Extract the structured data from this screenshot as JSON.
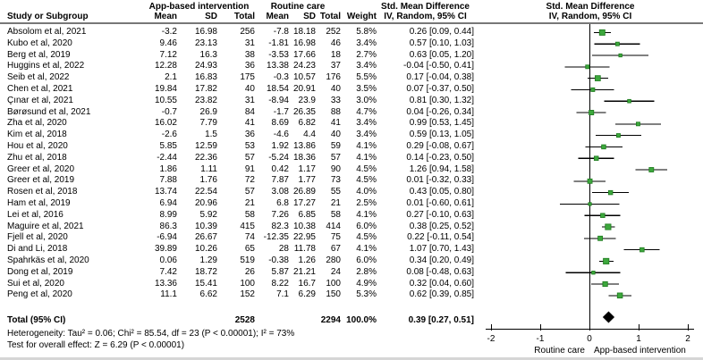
{
  "header": {
    "study_col": "Study or Subgroup",
    "group1": "App-based intervention",
    "group2": "Routine care",
    "mean": "Mean",
    "sd": "SD",
    "total": "Total",
    "weight": "Weight",
    "smd_line1": "Std. Mean Difference",
    "smd_line2": "IV, Random, 95% CI"
  },
  "footnotes": {
    "heterogeneity": "Heterogeneity: Tau² = 0.06; Chi² = 85.54, df = 23 (P < 0.00001); I² = 73%",
    "overall_effect": "Test for overall effect: Z = 6.29 (P < 0.00001)"
  },
  "colors": {
    "marker_fill": "#3DA83D",
    "marker_stroke": "#1E7A1E",
    "diamond": "#000000",
    "axis": "#000000",
    "header_rule": "#777777"
  },
  "chart_data": {
    "type": "scatter",
    "variant": "forest-plot",
    "title": "Std. Mean Difference",
    "effect_model": "IV, Random, 95% CI",
    "xlim": [
      -2,
      2
    ],
    "x_ticks": [
      -2,
      -1,
      0,
      1,
      2
    ],
    "x_label_left": "Routine care",
    "x_label_right": "App-based intervention",
    "studies": [
      {
        "name": "Absolom et al, 2021",
        "m1": -3.2,
        "sd1": 16.98,
        "n1": 256,
        "m2": -7.8,
        "sd2": 18.18,
        "n2": 252,
        "weight": 5.8,
        "est": 0.26,
        "lo": 0.09,
        "hi": 0.44
      },
      {
        "name": "Kubo et al, 2020",
        "m1": 9.46,
        "sd1": 23.13,
        "n1": 31,
        "m2": -1.81,
        "sd2": 16.98,
        "n2": 46,
        "weight": 3.4,
        "est": 0.57,
        "lo": 0.1,
        "hi": 1.03
      },
      {
        "name": "Berg et al, 2019",
        "m1": 7.12,
        "sd1": 16.3,
        "n1": 38,
        "m2": -3.53,
        "sd2": 17.66,
        "n2": 18,
        "weight": 2.7,
        "est": 0.63,
        "lo": 0.05,
        "hi": 1.2
      },
      {
        "name": "Huggins et al, 2022",
        "m1": 12.28,
        "sd1": 24.93,
        "n1": 36,
        "m2": 13.38,
        "sd2": 24.23,
        "n2": 37,
        "weight": 3.4,
        "est": -0.04,
        "lo": -0.5,
        "hi": 0.41
      },
      {
        "name": "Seib et al, 2022",
        "m1": 2.1,
        "sd1": 16.83,
        "n1": 175,
        "m2": -0.3,
        "sd2": 10.57,
        "n2": 176,
        "weight": 5.5,
        "est": 0.17,
        "lo": -0.04,
        "hi": 0.38
      },
      {
        "name": "Chen et al, 2021",
        "m1": 19.84,
        "sd1": 17.82,
        "n1": 40,
        "m2": 18.54,
        "sd2": 20.91,
        "n2": 40,
        "weight": 3.5,
        "est": 0.07,
        "lo": -0.37,
        "hi": 0.5
      },
      {
        "name": "Çınar et al, 2021",
        "m1": 10.55,
        "sd1": 23.82,
        "n1": 31,
        "m2": -8.94,
        "sd2": 23.9,
        "n2": 33,
        "weight": 3.0,
        "est": 0.81,
        "lo": 0.3,
        "hi": 1.32
      },
      {
        "name": "Børøsund et al, 2021",
        "m1": -0.7,
        "sd1": 26.9,
        "n1": 84,
        "m2": -1.7,
        "sd2": 26.35,
        "n2": 88,
        "weight": 4.7,
        "est": 0.04,
        "lo": -0.26,
        "hi": 0.34
      },
      {
        "name": "Zha et al, 2020",
        "m1": 16.02,
        "sd1": 7.79,
        "n1": 41,
        "m2": 8.69,
        "sd2": 6.82,
        "n2": 41,
        "weight": 3.4,
        "est": 0.99,
        "lo": 0.53,
        "hi": 1.45
      },
      {
        "name": "Kim et al, 2018",
        "m1": -2.6,
        "sd1": 1.5,
        "n1": 36,
        "m2": -4.6,
        "sd2": 4.4,
        "n2": 40,
        "weight": 3.4,
        "est": 0.59,
        "lo": 0.13,
        "hi": 1.05
      },
      {
        "name": "Hou et al, 2020",
        "m1": 5.85,
        "sd1": 12.59,
        "n1": 53,
        "m2": 1.92,
        "sd2": 13.86,
        "n2": 59,
        "weight": 4.1,
        "est": 0.29,
        "lo": -0.08,
        "hi": 0.67
      },
      {
        "name": "Zhu et al, 2018",
        "m1": -2.44,
        "sd1": 22.36,
        "n1": 57,
        "m2": -5.24,
        "sd2": 18.36,
        "n2": 57,
        "weight": 4.1,
        "est": 0.14,
        "lo": -0.23,
        "hi": 0.5
      },
      {
        "name": "Greer et al, 2020",
        "m1": 1.86,
        "sd1": 1.11,
        "n1": 91,
        "m2": 0.42,
        "sd2": 1.17,
        "n2": 90,
        "weight": 4.5,
        "est": 1.26,
        "lo": 0.94,
        "hi": 1.58
      },
      {
        "name": "Greer et al, 2019",
        "m1": 7.88,
        "sd1": 1.76,
        "n1": 72,
        "m2": 7.87,
        "sd2": 1.77,
        "n2": 73,
        "weight": 4.5,
        "est": 0.01,
        "lo": -0.32,
        "hi": 0.33
      },
      {
        "name": "Rosen et al, 2018",
        "m1": 13.74,
        "sd1": 22.54,
        "n1": 57,
        "m2": 3.08,
        "sd2": 26.89,
        "n2": 55,
        "weight": 4.0,
        "est": 0.43,
        "lo": 0.05,
        "hi": 0.8
      },
      {
        "name": "Ham et al, 2019",
        "m1": 6.94,
        "sd1": 20.96,
        "n1": 21,
        "m2": 6.8,
        "sd2": 17.27,
        "n2": 21,
        "weight": 2.5,
        "est": 0.01,
        "lo": -0.6,
        "hi": 0.61
      },
      {
        "name": "Lei et al, 2016",
        "m1": 8.99,
        "sd1": 5.92,
        "n1": 58,
        "m2": 7.26,
        "sd2": 6.85,
        "n2": 58,
        "weight": 4.1,
        "est": 0.27,
        "lo": -0.1,
        "hi": 0.63
      },
      {
        "name": "Maguire et al, 2021",
        "m1": 86.3,
        "sd1": 10.39,
        "n1": 415,
        "m2": 82.3,
        "sd2": 10.38,
        "n2": 414,
        "weight": 6.0,
        "est": 0.38,
        "lo": 0.25,
        "hi": 0.52
      },
      {
        "name": "Fjell et al, 2020",
        "m1": -6.94,
        "sd1": 26.67,
        "n1": 74,
        "m2": -12.35,
        "sd2": 22.95,
        "n2": 75,
        "weight": 4.5,
        "est": 0.22,
        "lo": -0.11,
        "hi": 0.54
      },
      {
        "name": "Di and Li, 2018",
        "m1": 39.89,
        "sd1": 10.26,
        "n1": 65,
        "m2": 28,
        "sd2": 11.78,
        "n2": 67,
        "weight": 4.1,
        "est": 1.07,
        "lo": 0.7,
        "hi": 1.43
      },
      {
        "name": "Spahrkäs et al, 2020",
        "m1": 0.06,
        "sd1": 1.29,
        "n1": 519,
        "m2": -0.38,
        "sd2": 1.26,
        "n2": 280,
        "weight": 6.0,
        "est": 0.34,
        "lo": 0.2,
        "hi": 0.49
      },
      {
        "name": "Dong et al, 2019",
        "m1": 7.42,
        "sd1": 18.72,
        "n1": 26,
        "m2": 5.87,
        "sd2": 21.21,
        "n2": 24,
        "weight": 2.8,
        "est": 0.08,
        "lo": -0.48,
        "hi": 0.63
      },
      {
        "name": "Sui et al, 2020",
        "m1": 13.36,
        "sd1": 15.41,
        "n1": 100,
        "m2": 8.22,
        "sd2": 16.7,
        "n2": 100,
        "weight": 4.9,
        "est": 0.32,
        "lo": 0.04,
        "hi": 0.6
      },
      {
        "name": "Peng et al, 2020",
        "m1": 11.1,
        "sd1": 6.62,
        "n1": 152,
        "m2": 7.1,
        "sd2": 6.29,
        "n2": 150,
        "weight": 5.3,
        "est": 0.62,
        "lo": 0.39,
        "hi": 0.85
      }
    ],
    "total": {
      "label": "Total (95% CI)",
      "n1": 2528,
      "n2": 2294,
      "weight": 100.0,
      "est": 0.39,
      "lo": 0.27,
      "hi": 0.51
    }
  }
}
